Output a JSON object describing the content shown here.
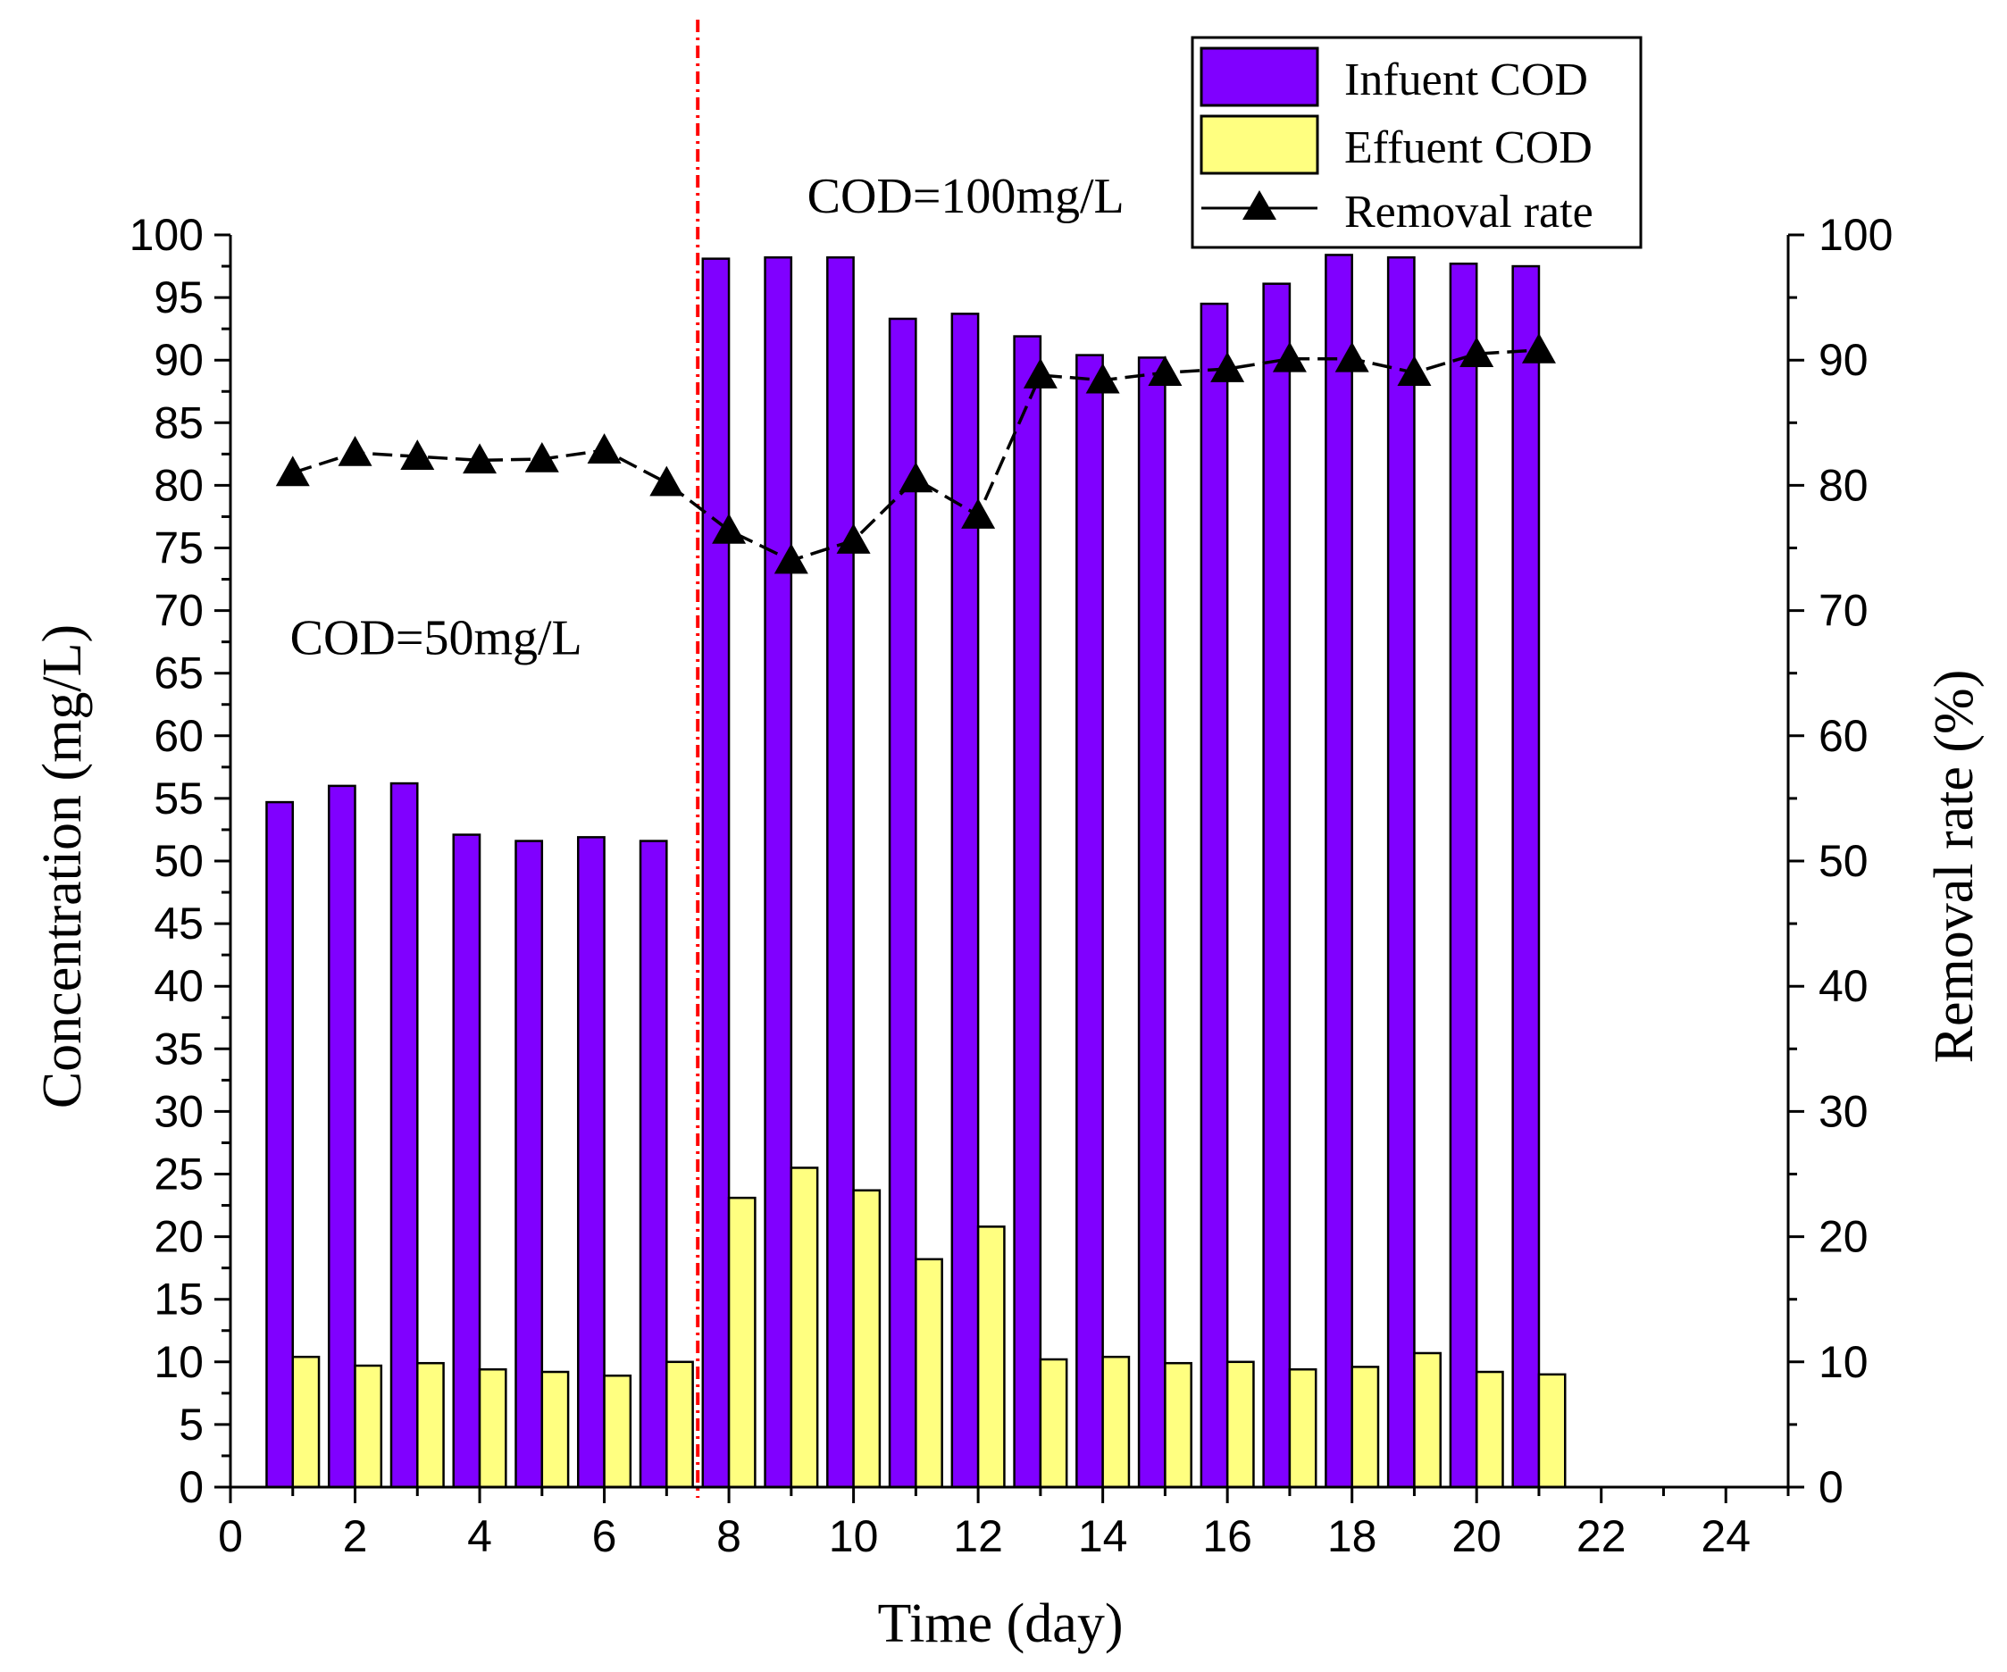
{
  "chart_data": {
    "type": "bar",
    "title": "",
    "xlabel": "Time (day)",
    "ylabel": "Concentration (mg/L)",
    "y2label": "Removal rate (%)",
    "xlim": [
      0,
      25
    ],
    "ylim": [
      0,
      100
    ],
    "y2lim": [
      0,
      100
    ],
    "xticks": [
      "0",
      "2",
      "4",
      "6",
      "8",
      "10",
      "12",
      "14",
      "16",
      "18",
      "20",
      "22",
      "24"
    ],
    "yticks": [
      "0",
      "5",
      "10",
      "15",
      "20",
      "25",
      "30",
      "35",
      "40",
      "45",
      "50",
      "55",
      "60",
      "65",
      "70",
      "75",
      "80",
      "85",
      "90",
      "95",
      "100"
    ],
    "y2ticks": [
      "0",
      "10",
      "20",
      "30",
      "40",
      "50",
      "60",
      "70",
      "80",
      "90",
      "100"
    ],
    "x": [
      1,
      2,
      3,
      4,
      5,
      6,
      7,
      8,
      9,
      10,
      11,
      12,
      13,
      14,
      15,
      16,
      17,
      18,
      19,
      20,
      21
    ],
    "series": [
      {
        "name": "Infuent COD",
        "type": "bar",
        "color": "#8000ff",
        "values": [
          54.7,
          56.0,
          56.2,
          52.1,
          51.6,
          51.9,
          51.6,
          98.1,
          98.2,
          98.2,
          93.3,
          93.7,
          91.9,
          90.4,
          90.2,
          94.5,
          96.1,
          98.4,
          98.2,
          97.7,
          97.5
        ]
      },
      {
        "name": "Effuent COD",
        "type": "bar",
        "color": "#ffff80",
        "values": [
          10.4,
          9.7,
          9.9,
          9.4,
          9.2,
          8.9,
          10.0,
          23.1,
          25.5,
          23.7,
          18.2,
          20.8,
          10.2,
          10.4,
          9.9,
          10.0,
          9.4,
          9.6,
          10.7,
          9.2,
          9.0
        ]
      },
      {
        "name": "Removal rate",
        "type": "line",
        "axis": "right",
        "color": "#000000",
        "values": [
          81.0,
          82.6,
          82.3,
          82.0,
          82.1,
          82.8,
          80.2,
          76.4,
          74.0,
          75.6,
          80.5,
          77.6,
          88.8,
          88.4,
          89.0,
          89.3,
          90.1,
          90.1,
          89.0,
          90.5,
          90.8
        ]
      }
    ],
    "divider_x": 7.5,
    "divider_color": "#ff0000",
    "annotations": [
      {
        "text": "COD=50mg/L",
        "x": 3.3,
        "y": 66.5
      },
      {
        "text": "COD=100mg/L",
        "x": 11.8,
        "y": 101.8
      }
    ],
    "legend_position": "top-right"
  }
}
